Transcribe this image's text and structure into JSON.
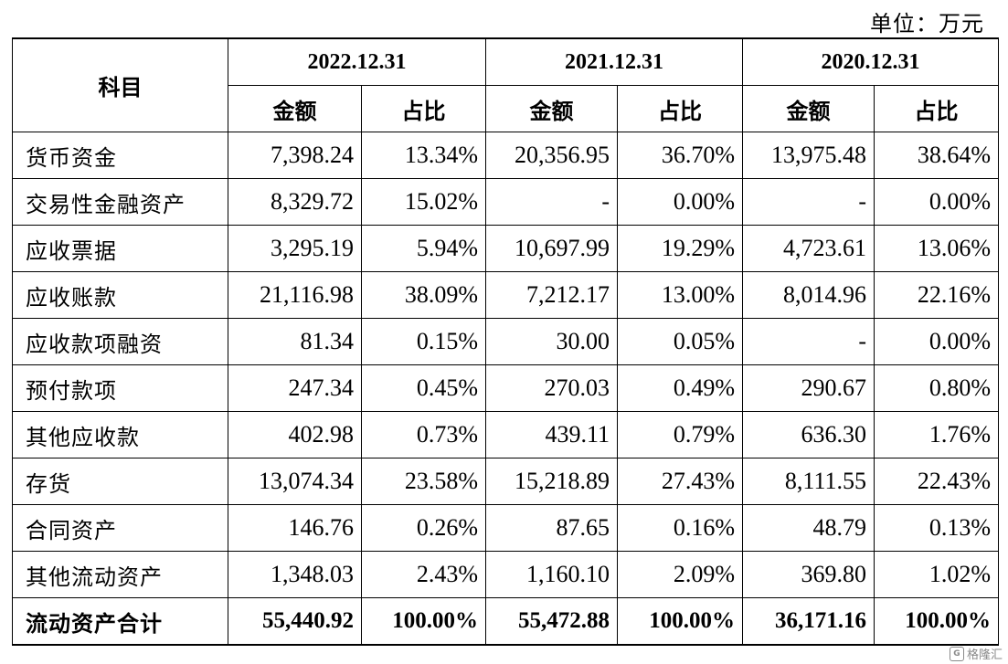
{
  "unit_note": "单位：万元",
  "table": {
    "subject_header": "科目",
    "periods": [
      "2022.12.31",
      "2021.12.31",
      "2020.12.31"
    ],
    "amount_header": "金额",
    "ratio_header": "占比",
    "rows": [
      {
        "label": "货币资金",
        "values": [
          "7,398.24",
          "13.34%",
          "20,356.95",
          "36.70%",
          "13,975.48",
          "38.64%"
        ]
      },
      {
        "label": "交易性金融资产",
        "values": [
          "8,329.72",
          "15.02%",
          "-",
          "0.00%",
          "-",
          "0.00%"
        ]
      },
      {
        "label": "应收票据",
        "values": [
          "3,295.19",
          "5.94%",
          "10,697.99",
          "19.29%",
          "4,723.61",
          "13.06%"
        ]
      },
      {
        "label": "应收账款",
        "values": [
          "21,116.98",
          "38.09%",
          "7,212.17",
          "13.00%",
          "8,014.96",
          "22.16%"
        ]
      },
      {
        "label": "应收款项融资",
        "values": [
          "81.34",
          "0.15%",
          "30.00",
          "0.05%",
          "-",
          "0.00%"
        ]
      },
      {
        "label": "预付款项",
        "values": [
          "247.34",
          "0.45%",
          "270.03",
          "0.49%",
          "290.67",
          "0.80%"
        ]
      },
      {
        "label": "其他应收款",
        "values": [
          "402.98",
          "0.73%",
          "439.11",
          "0.79%",
          "636.30",
          "1.76%"
        ]
      },
      {
        "label": "存货",
        "values": [
          "13,074.34",
          "23.58%",
          "15,218.89",
          "27.43%",
          "8,111.55",
          "22.43%"
        ]
      },
      {
        "label": "合同资产",
        "values": [
          "146.76",
          "0.26%",
          "87.65",
          "0.16%",
          "48.79",
          "0.13%"
        ]
      },
      {
        "label": "其他流动资产",
        "values": [
          "1,348.03",
          "2.43%",
          "1,160.10",
          "2.09%",
          "369.80",
          "1.02%"
        ]
      }
    ],
    "total": {
      "label": "流动资产合计",
      "values": [
        "55,440.92",
        "100.00%",
        "55,472.88",
        "100.00%",
        "36,171.16",
        "100.00%"
      ]
    }
  },
  "watermark": {
    "icon": "gelonghui-logo-icon",
    "text": "格隆汇"
  }
}
